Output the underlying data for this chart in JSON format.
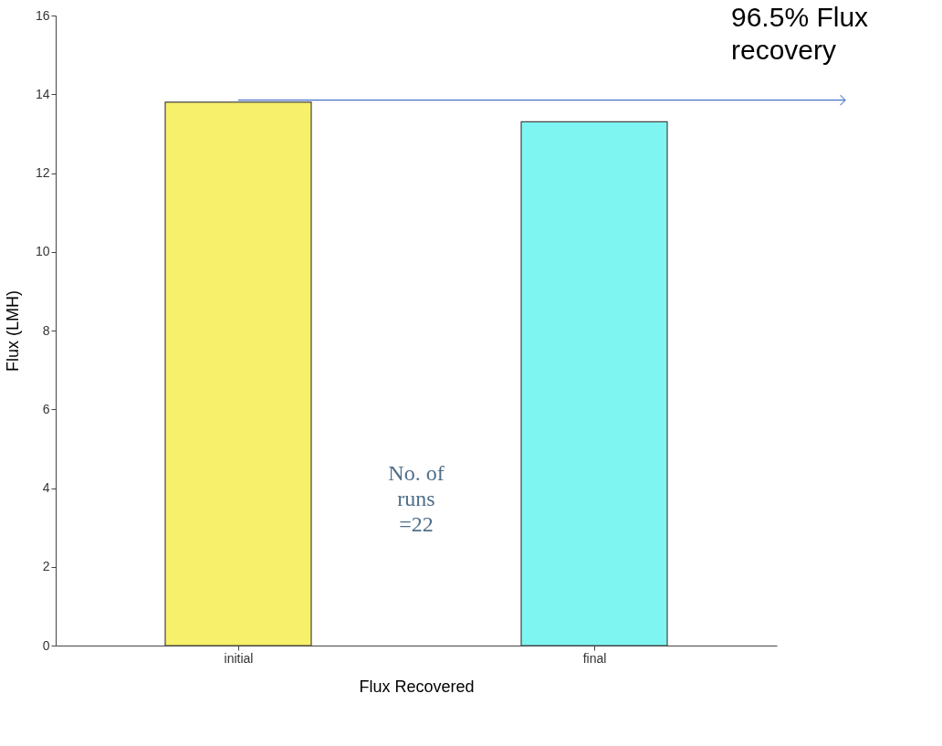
{
  "chart_data": {
    "type": "bar",
    "xlabel": "Flux Recovered",
    "ylabel": "Flux (LMH)",
    "categories": [
      "initial",
      "final"
    ],
    "values": [
      13.8,
      13.3
    ],
    "colors": [
      "#f7f06a",
      "#7ff5f2"
    ],
    "ylim": [
      0,
      16
    ],
    "yticks": [
      0,
      2,
      4,
      6,
      8,
      10,
      12,
      14,
      16
    ],
    "grid": false,
    "legend": false,
    "annotations": [
      {
        "text": "96.5% Flux\nrecovery",
        "x": "initial",
        "y": 13.8
      },
      "No. of\nruns\n=22"
    ]
  }
}
